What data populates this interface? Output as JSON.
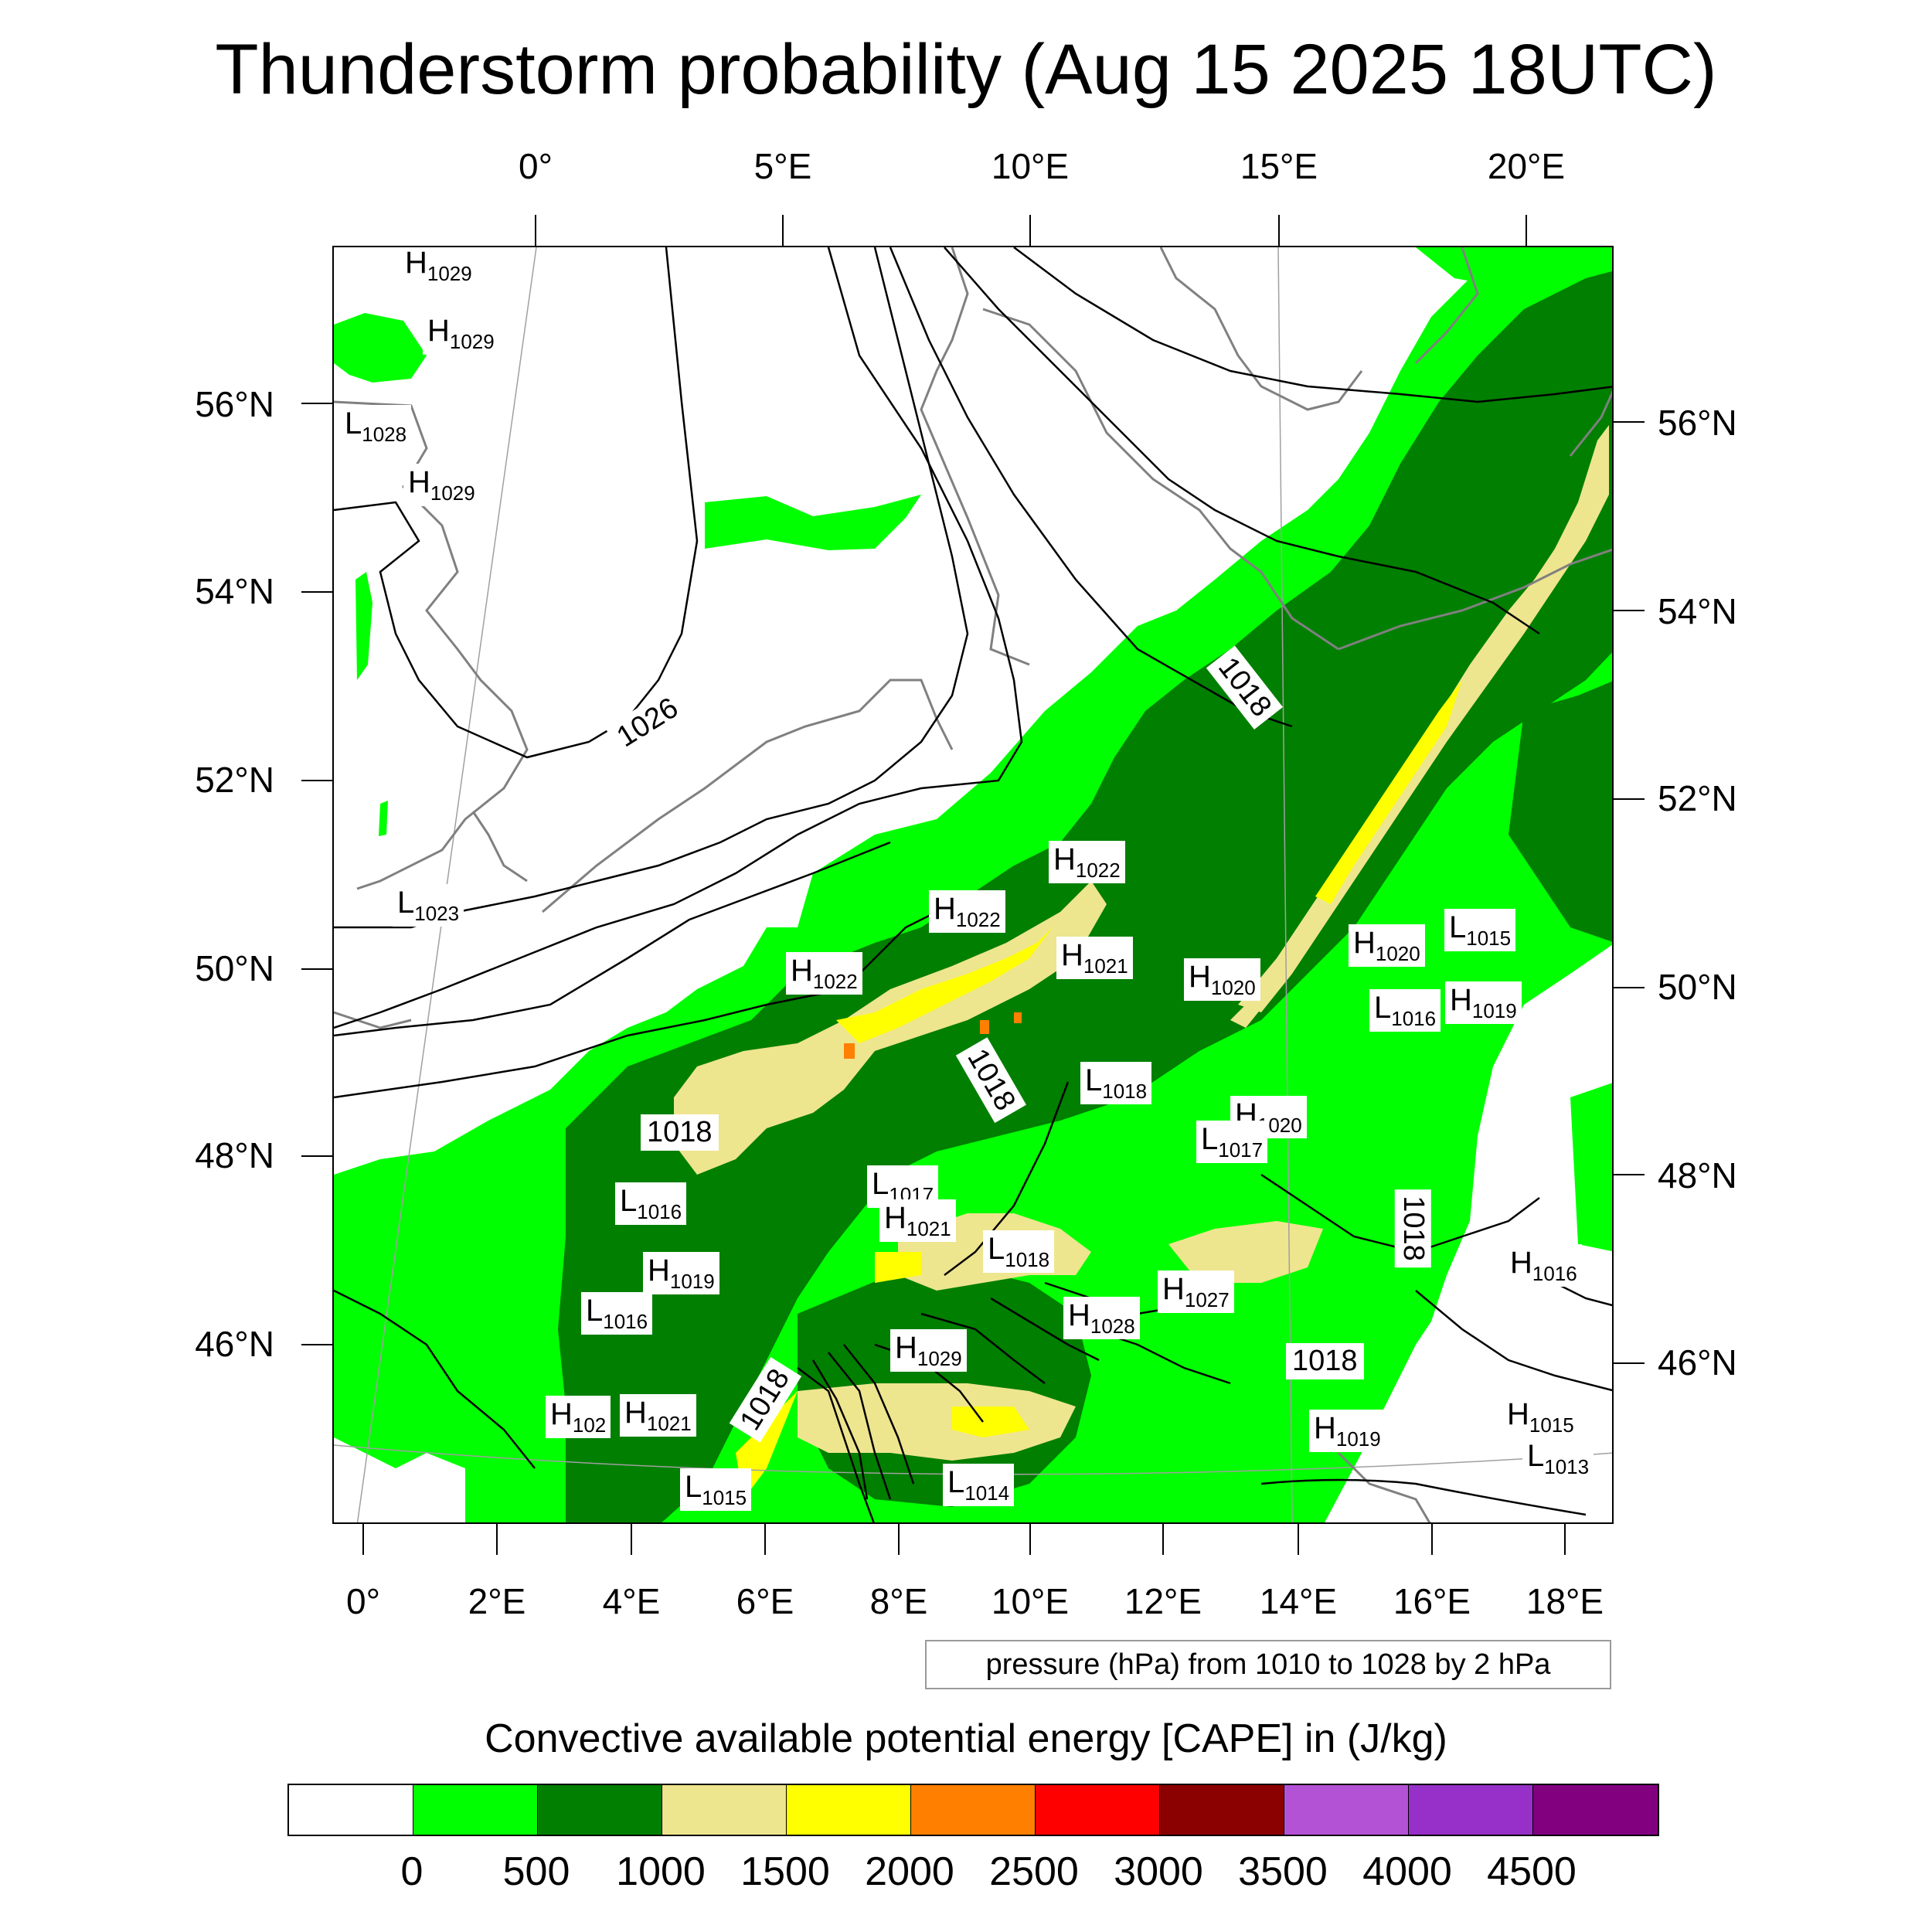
{
  "title": "Thunderstorm probability (Aug 15 2025 18UTC)",
  "axes": {
    "top_lon_labels": [
      "0°",
      "5°E",
      "10°E",
      "15°E",
      "20°E"
    ],
    "bottom_lon_labels": [
      "0°",
      "2°E",
      "4°E",
      "6°E",
      "8°E",
      "10°E",
      "12°E",
      "14°E",
      "16°E",
      "18°E"
    ],
    "left_lat_labels": [
      "56°N",
      "54°N",
      "52°N",
      "50°N",
      "48°N",
      "46°N"
    ],
    "right_lat_labels": [
      "56°N",
      "54°N",
      "52°N",
      "50°N",
      "48°N",
      "46°N"
    ]
  },
  "pressure_centers": [
    {
      "type": "H",
      "value": "1029"
    },
    {
      "type": "H",
      "value": "1029"
    },
    {
      "type": "L",
      "value": "1028"
    },
    {
      "type": "H",
      "value": "1029"
    },
    {
      "type": "L",
      "value": "1023"
    },
    {
      "type": "H",
      "value": "1022"
    },
    {
      "type": "H",
      "value": "1022"
    },
    {
      "type": "H",
      "value": "1022"
    },
    {
      "type": "H",
      "value": "1021"
    },
    {
      "type": "H",
      "value": "1020"
    },
    {
      "type": "H",
      "value": "1020"
    },
    {
      "type": "L",
      "value": "1015"
    },
    {
      "type": "L",
      "value": "1016"
    },
    {
      "type": "H",
      "value": "1019"
    },
    {
      "type": "L",
      "value": "1018"
    },
    {
      "type": "H",
      "value": "1020"
    },
    {
      "type": "L",
      "value": "1017"
    },
    {
      "type": "L",
      "value": "1016"
    },
    {
      "type": "H",
      "value": "1019"
    },
    {
      "type": "L",
      "value": "1016"
    },
    {
      "type": "L",
      "value": "1017"
    },
    {
      "type": "H",
      "value": "1021"
    },
    {
      "type": "L",
      "value": "1018"
    },
    {
      "type": "H",
      "value": "1027"
    },
    {
      "type": "H",
      "value": "1028"
    },
    {
      "type": "H",
      "value": "1029"
    },
    {
      "type": "H",
      "value": "1016"
    },
    {
      "type": "H",
      "value": "102"
    },
    {
      "type": "H",
      "value": "1021"
    },
    {
      "type": "H",
      "value": "1019"
    },
    {
      "type": "H",
      "value": "1015"
    },
    {
      "type": "L",
      "value": "1013"
    },
    {
      "type": "L",
      "value": "1015"
    },
    {
      "type": "L",
      "value": "1014"
    }
  ],
  "isobar_labels": [
    "1026",
    "1018",
    "1018",
    "1018",
    "1018",
    "1018",
    "1018"
  ],
  "isobar_info": "pressure (hPa) from 1010 to 1028 by 2 hPa",
  "legend": {
    "title": "Convective available potential energy [CAPE] in (J/kg)",
    "colors": [
      "#ffffff",
      "#00ff00",
      "#007f00",
      "#eee58f",
      "#ffff00",
      "#ff8000",
      "#ff0000",
      "#8b0000",
      "#b452d6",
      "#9630c8",
      "#82007f"
    ],
    "tick_labels": [
      "0",
      "500",
      "1000",
      "1500",
      "2000",
      "2500",
      "3000",
      "3500",
      "4000",
      "4500"
    ]
  },
  "colors": {
    "cape_0_500": "#00ff00",
    "cape_500_1000": "#007f00",
    "cape_1000_1500": "#eee58f",
    "cape_1500_2000": "#ffff00",
    "cape_2000_2500": "#ff8000",
    "coastline": "#808080",
    "isobar": "#000000"
  }
}
